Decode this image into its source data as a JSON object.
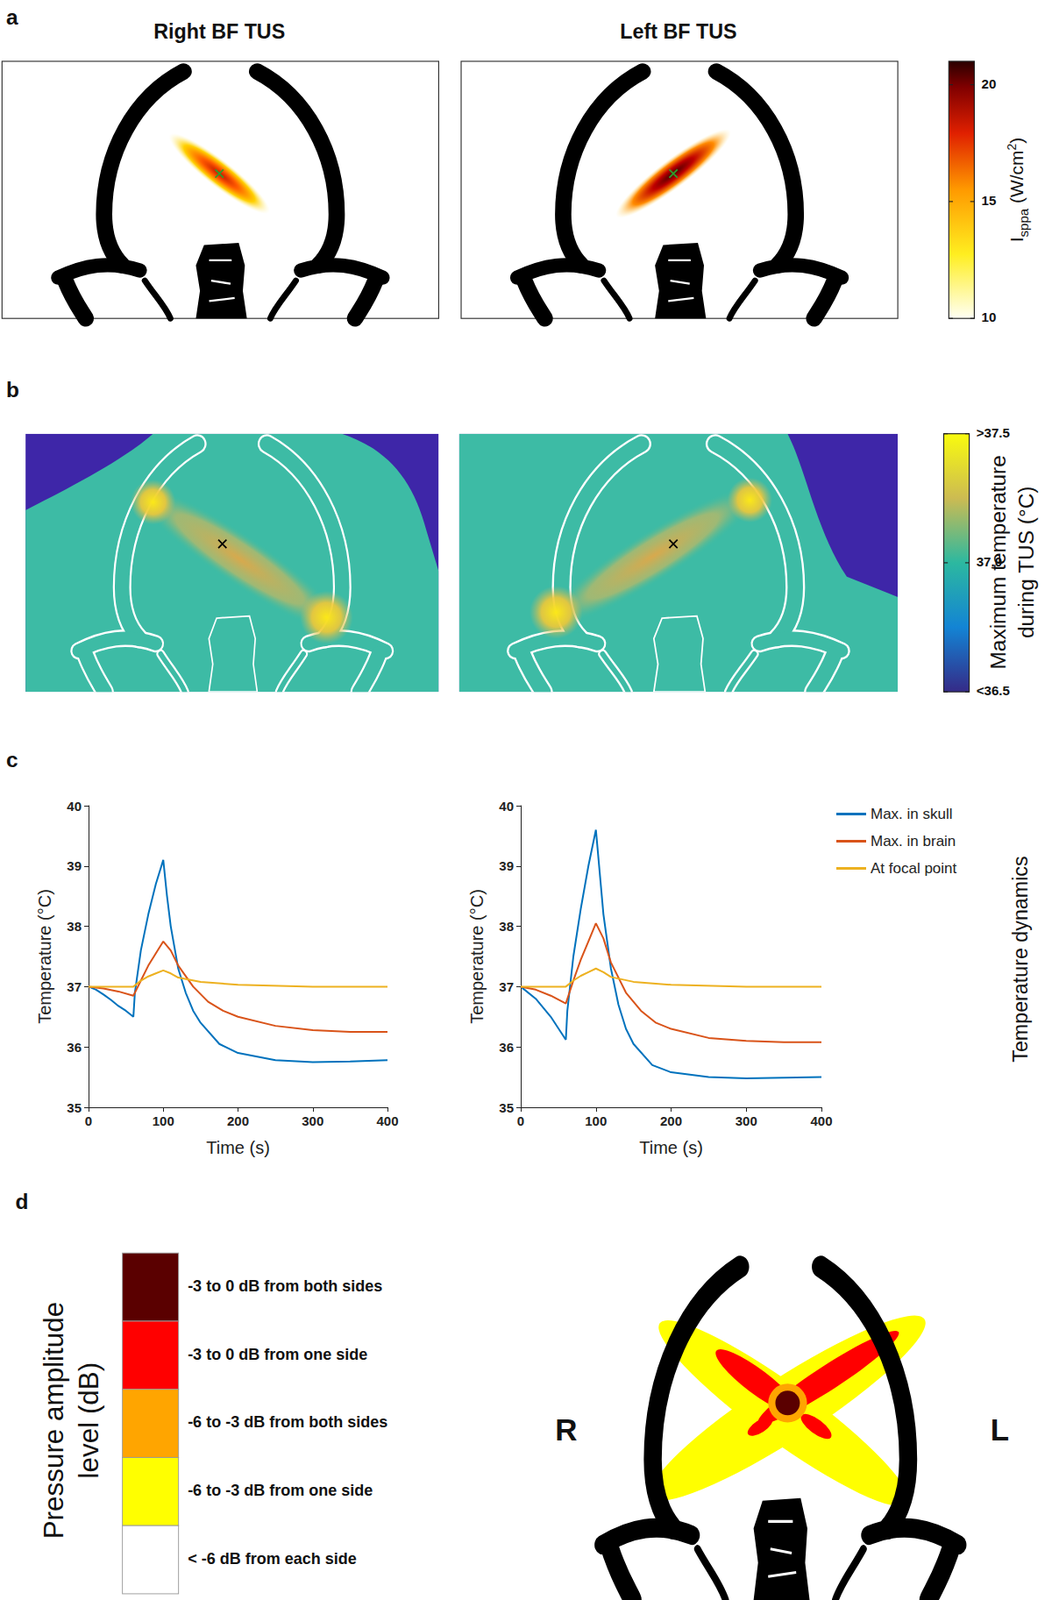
{
  "panel_a": {
    "letter": "a",
    "titles": [
      "Right BF TUS",
      "Left BF TUS"
    ],
    "colorbar": {
      "label": {
        "main": "I",
        "sub": "sppa",
        "unit": " (W/cm",
        "sup": "2",
        "end": ")"
      },
      "range": [
        10,
        21
      ],
      "ticks": [
        10,
        15,
        20
      ]
    }
  },
  "panel_b": {
    "letter": "b",
    "colorbar": {
      "label": [
        "Maximum temperature",
        "during TUS (°C)"
      ],
      "range": [
        36.5,
        37.5
      ],
      "ticks": [
        {
          "value": 36.5,
          "label": "<36.5"
        },
        {
          "value": 37,
          "label": "37.0"
        },
        {
          "value": 37.5,
          "label": ">37.5"
        }
      ]
    }
  },
  "panel_c": {
    "letter": "c",
    "side_label": "Temperature dynamics"
  },
  "chart_data": [
    {
      "type": "line",
      "xlabel": "Time (s)",
      "ylabel": "Temperature (°C)",
      "xlim": [
        0,
        400
      ],
      "xticks": [
        0,
        100,
        200,
        300,
        400
      ],
      "ylim": [
        35,
        40
      ],
      "yticks": [
        35,
        36,
        37,
        38,
        39,
        40
      ],
      "grid": false,
      "series": [
        {
          "name": "Max. in skull",
          "color": "#0072bd",
          "x": [
            0,
            10,
            20,
            30,
            40,
            50,
            60,
            62,
            70,
            80,
            90,
            100,
            105,
            110,
            120,
            130,
            140,
            150,
            175,
            200,
            250,
            300,
            350,
            400
          ],
          "values": [
            37,
            36.95,
            36.87,
            36.78,
            36.68,
            36.6,
            36.5,
            36.9,
            37.6,
            38.2,
            38.7,
            39.1,
            38.5,
            38.0,
            37.3,
            36.9,
            36.6,
            36.4,
            36.05,
            35.9,
            35.78,
            35.75,
            35.76,
            35.78
          ]
        },
        {
          "name": "Max. in brain",
          "color": "#d95319",
          "x": [
            0,
            20,
            40,
            60,
            70,
            80,
            90,
            100,
            110,
            120,
            140,
            160,
            180,
            200,
            250,
            300,
            350,
            400
          ],
          "values": [
            37,
            36.97,
            36.92,
            36.85,
            37.1,
            37.35,
            37.55,
            37.75,
            37.6,
            37.35,
            37.0,
            36.75,
            36.6,
            36.5,
            36.35,
            36.28,
            36.25,
            36.25
          ]
        },
        {
          "name": "At focal point",
          "color": "#edb120",
          "x": [
            0,
            60,
            70,
            80,
            90,
            100,
            110,
            120,
            150,
            200,
            300,
            400
          ],
          "values": [
            37,
            37.0,
            37.1,
            37.17,
            37.22,
            37.27,
            37.22,
            37.15,
            37.08,
            37.03,
            37.0,
            37.0
          ]
        }
      ]
    },
    {
      "type": "line",
      "xlabel": "Time (s)",
      "ylabel": "Temperature (°C)",
      "xlim": [
        0,
        400
      ],
      "xticks": [
        0,
        100,
        200,
        300,
        400
      ],
      "ylim": [
        35,
        40
      ],
      "yticks": [
        35,
        36,
        37,
        38,
        39,
        40
      ],
      "grid": false,
      "legend": "right",
      "series": [
        {
          "name": "Max. in skull",
          "color": "#0072bd",
          "x": [
            0,
            20,
            40,
            60,
            62,
            70,
            80,
            90,
            100,
            105,
            110,
            120,
            130,
            140,
            150,
            175,
            200,
            250,
            300,
            350,
            400
          ],
          "values": [
            37,
            36.8,
            36.5,
            36.12,
            36.6,
            37.5,
            38.3,
            39.0,
            39.6,
            38.9,
            38.2,
            37.3,
            36.7,
            36.3,
            36.05,
            35.7,
            35.58,
            35.5,
            35.48,
            35.49,
            35.5
          ]
        },
        {
          "name": "Max. in brain",
          "color": "#d95319",
          "x": [
            0,
            20,
            40,
            60,
            70,
            80,
            90,
            100,
            110,
            120,
            140,
            160,
            180,
            200,
            250,
            300,
            350,
            400
          ],
          "values": [
            37,
            36.95,
            36.85,
            36.72,
            37.1,
            37.45,
            37.75,
            38.05,
            37.8,
            37.4,
            36.9,
            36.6,
            36.4,
            36.3,
            36.15,
            36.1,
            36.08,
            36.08
          ]
        },
        {
          "name": "At focal point",
          "color": "#edb120",
          "x": [
            0,
            60,
            70,
            80,
            90,
            100,
            110,
            120,
            150,
            200,
            300,
            400
          ],
          "values": [
            37,
            37.0,
            37.1,
            37.18,
            37.24,
            37.3,
            37.24,
            37.16,
            37.08,
            37.03,
            37.0,
            37.0
          ]
        }
      ]
    }
  ],
  "panel_d": {
    "letter": "d",
    "legend_title": [
      "Pressure amplitude",
      "level (dB)"
    ],
    "levels": [
      {
        "label": "-3 to 0 dB from both sides",
        "color": "#5a0000"
      },
      {
        "label": "-3 to 0 dB from one side",
        "color": "#ff0000"
      },
      {
        "label": "-6 to -3 dB from both sides",
        "color": "#ffa500"
      },
      {
        "label": "-6 to -3 dB from one side",
        "color": "#ffff00"
      },
      {
        "label": "< -6 dB from each side",
        "color": "#ffffff"
      }
    ],
    "side_labels": [
      "R",
      "L"
    ]
  }
}
